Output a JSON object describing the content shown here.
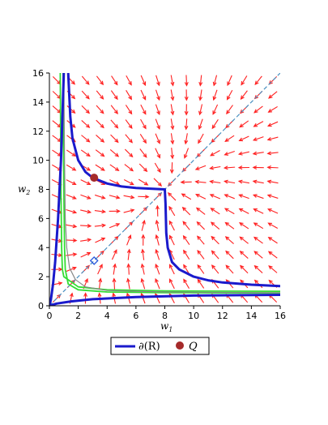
{
  "chart_data": {
    "type": "line",
    "title": "",
    "xlabel": {
      "base": "w",
      "sub": "1"
    },
    "ylabel": {
      "base": "w",
      "sub": "2"
    },
    "xlim": [
      0,
      16
    ],
    "ylim": [
      0,
      16
    ],
    "xticks": [
      "0",
      "2",
      "4",
      "6",
      "8",
      "10",
      "12",
      "14",
      "16"
    ],
    "yticks": [
      "0",
      "2",
      "4",
      "6",
      "8",
      "10",
      "12",
      "14",
      "16"
    ],
    "grid": false,
    "legend_position": "bottom",
    "legend": [
      {
        "label": "∂(R)",
        "kind": "line",
        "color": "#1a1acc"
      },
      {
        "label": "Q",
        "kind": "point",
        "color": "#a52a2a"
      }
    ],
    "colors": {
      "vector_field": "#ff2020",
      "boundary": "#1a1acc",
      "green_curves": "#33dd33",
      "gray_curves": "#888888",
      "diagonal": "#4a90c0",
      "point_q": "#a52a2a",
      "marker": "#2a5adc"
    },
    "series": [
      {
        "name": "∂(R)",
        "points": [
          [
            1.3,
            16
          ],
          [
            1.45,
            13
          ],
          [
            1.6,
            11.5
          ],
          [
            2,
            10
          ],
          [
            2.5,
            9.2
          ],
          [
            3,
            8.8
          ],
          [
            4,
            8.4
          ],
          [
            5,
            8.2
          ],
          [
            6,
            8.1
          ],
          [
            7,
            8.05
          ],
          [
            8,
            8.0
          ],
          [
            8.05,
            7
          ],
          [
            8.1,
            5
          ],
          [
            8.2,
            4
          ],
          [
            8.5,
            3
          ],
          [
            9,
            2.5
          ],
          [
            10,
            2.0
          ],
          [
            11,
            1.75
          ],
          [
            12,
            1.6
          ],
          [
            14,
            1.45
          ],
          [
            16,
            1.35
          ]
        ]
      },
      {
        "name": "",
        "points": [
          [
            0,
            0
          ],
          [
            0.1,
            0.4
          ],
          [
            0.25,
            1.5
          ],
          [
            0.4,
            3
          ],
          [
            0.6,
            6
          ],
          [
            0.8,
            10
          ],
          [
            1.0,
            16
          ]
        ]
      },
      {
        "name": "",
        "points": [
          [
            0,
            0
          ],
          [
            0.5,
            0.15
          ],
          [
            1.5,
            0.3
          ],
          [
            3,
            0.45
          ],
          [
            6,
            0.6
          ],
          [
            10,
            0.7
          ],
          [
            16,
            0.75
          ]
        ]
      },
      {
        "name": "",
        "points": [
          [
            0.75,
            16
          ],
          [
            0.8,
            8
          ],
          [
            0.85,
            4
          ],
          [
            0.9,
            2.5
          ],
          [
            1,
            2
          ],
          [
            2,
            1.3
          ],
          [
            4,
            1.1
          ],
          [
            8,
            1.02
          ],
          [
            16,
            1.0
          ]
        ]
      },
      {
        "name": "",
        "points": [
          [
            0.95,
            16
          ],
          [
            1.0,
            8
          ],
          [
            1.05,
            4
          ],
          [
            1.1,
            2.5
          ],
          [
            1.3,
            1.5
          ],
          [
            2,
            1.1
          ],
          [
            4,
            0.95
          ],
          [
            8,
            0.9
          ],
          [
            16,
            0.88
          ]
        ]
      },
      {
        "name": "",
        "points": [
          [
            1.0,
            16
          ],
          [
            1.05,
            10
          ],
          [
            1.1,
            6
          ],
          [
            1.2,
            4
          ],
          [
            1.4,
            2.6
          ],
          [
            1.8,
            1.8
          ],
          [
            2.5,
            1.3
          ],
          [
            4,
            1.05
          ],
          [
            8,
            0.95
          ],
          [
            16,
            0.9
          ]
        ]
      }
    ],
    "diagonal": {
      "from": [
        0,
        0
      ],
      "to": [
        16,
        16
      ]
    },
    "points": [
      {
        "name": "Q",
        "x": 3.1,
        "y": 8.8
      }
    ],
    "markers": [
      {
        "shape": "diamond",
        "x": 3.1,
        "y": 3.1
      }
    ],
    "vector_field": {
      "x_values": [
        0.5,
        1.5,
        2.5,
        3.5,
        4.5,
        5.5,
        6.5,
        7.5,
        8.5,
        9.5,
        10.5,
        11.5,
        12.5,
        13.5,
        14.5,
        15.5
      ],
      "y_values": [
        0.5,
        1.5,
        2.5,
        3.5,
        4.5,
        5.5,
        6.5,
        7.5,
        8.5,
        9.5,
        10.5,
        11.5,
        12.5,
        13.5,
        14.5,
        15.5
      ]
    }
  }
}
